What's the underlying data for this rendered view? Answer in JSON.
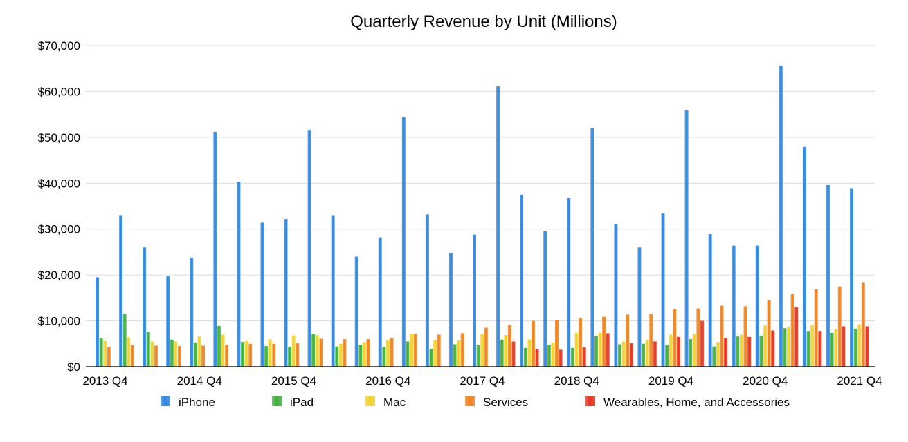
{
  "chart_data": {
    "type": "bar",
    "title": "Quarterly Revenue by Unit (Millions)",
    "xlabel": "",
    "ylabel": "",
    "ylim": [
      0,
      70000
    ],
    "yticks": [
      0,
      10000,
      20000,
      30000,
      40000,
      50000,
      60000,
      70000
    ],
    "ytick_labels": [
      "$0",
      "$10,000",
      "$20,000",
      "$30,000",
      "$40,000",
      "$50,000",
      "$60,000",
      "$70,000"
    ],
    "grid": true,
    "legend_position": "bottom",
    "categories": [
      "2013 Q4",
      "2014 Q1",
      "2014 Q2",
      "2014 Q3",
      "2014 Q4",
      "2015 Q1",
      "2015 Q2",
      "2015 Q3",
      "2015 Q4",
      "2016 Q1",
      "2016 Q2",
      "2016 Q3",
      "2016 Q4",
      "2017 Q1",
      "2017 Q2",
      "2017 Q3",
      "2017 Q4",
      "2018 Q1",
      "2018 Q2",
      "2018 Q3",
      "2018 Q4",
      "2019 Q1",
      "2019 Q2",
      "2019 Q3",
      "2019 Q4",
      "2020 Q1",
      "2020 Q2",
      "2020 Q3",
      "2020 Q4",
      "2021 Q1",
      "2021 Q2",
      "2021 Q3",
      "2021 Q4"
    ],
    "labeled_categories": [
      "2013 Q4",
      "2014 Q4",
      "2015 Q4",
      "2016 Q4",
      "2017 Q4",
      "2018 Q4",
      "2019 Q4",
      "2020 Q4",
      "2021 Q4"
    ],
    "series": [
      {
        "name": "iPhone",
        "color": "#2f86e0",
        "values": [
          19500,
          32900,
          26000,
          19700,
          23700,
          51200,
          40300,
          31400,
          32200,
          51600,
          32900,
          24000,
          28200,
          54400,
          33200,
          24800,
          28800,
          61100,
          37500,
          29500,
          36800,
          52000,
          31100,
          26000,
          33400,
          56000,
          28900,
          26400,
          26400,
          65600,
          47900,
          39600,
          38900
        ]
      },
      {
        "name": "iPad",
        "color": "#3fb03c",
        "values": [
          6200,
          11500,
          7600,
          5900,
          5300,
          8900,
          5400,
          4500,
          4300,
          7100,
          4400,
          4800,
          4300,
          5500,
          3900,
          4900,
          4800,
          5900,
          4100,
          4700,
          4100,
          6700,
          4900,
          5000,
          4700,
          6000,
          4400,
          6600,
          6800,
          8400,
          7800,
          7400,
          8300
        ]
      },
      {
        "name": "Mac",
        "color": "#f2d22e",
        "values": [
          5600,
          6400,
          5500,
          5500,
          6600,
          7000,
          5600,
          6000,
          6800,
          6900,
          5000,
          5400,
          5800,
          7200,
          5800,
          5700,
          7100,
          6900,
          5900,
          5300,
          7400,
          7400,
          5500,
          5800,
          7000,
          7200,
          5400,
          7000,
          9000,
          8700,
          9100,
          8200,
          9200
        ]
      },
      {
        "name": "Services",
        "color": "#f0821e",
        "values": [
          4300,
          4700,
          4600,
          4500,
          4600,
          4800,
          5000,
          5000,
          5100,
          6100,
          6000,
          6000,
          6300,
          7200,
          7000,
          7300,
          8500,
          9100,
          10000,
          10100,
          10600,
          10900,
          11400,
          11500,
          12500,
          12700,
          13300,
          13200,
          14500,
          15800,
          16900,
          17500,
          18300
        ]
      },
      {
        "name": "Wearables, Home, and Accessories",
        "color": "#e8321e",
        "values": [
          0,
          0,
          0,
          0,
          0,
          0,
          0,
          0,
          0,
          0,
          0,
          0,
          0,
          0,
          0,
          0,
          0,
          5500,
          3900,
          3700,
          4200,
          7300,
          5100,
          5500,
          6500,
          10000,
          6300,
          6500,
          7900,
          13000,
          7800,
          8800,
          8800
        ]
      }
    ]
  }
}
